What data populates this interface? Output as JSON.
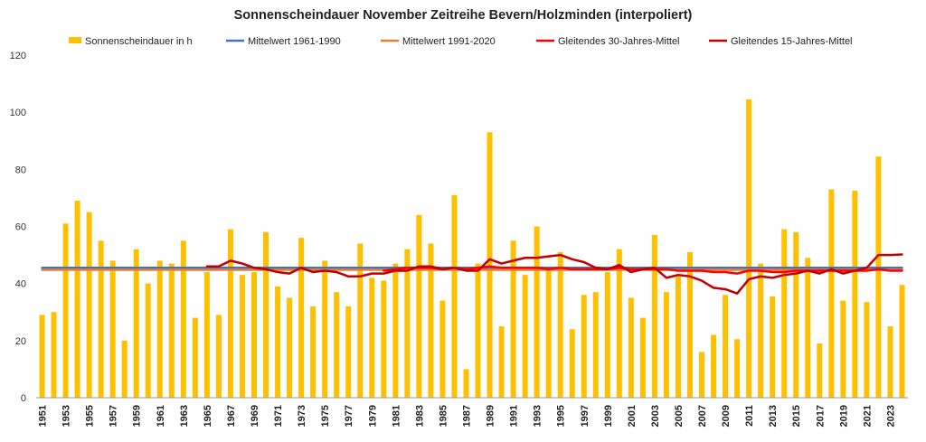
{
  "chart_data": {
    "type": "bar",
    "title": "Sonnenscheindauer November Zeitreihe Bevern/Holzminden (interpoliert)",
    "xlabel": "",
    "ylabel": "",
    "ylim": [
      0,
      120
    ],
    "yticks": [
      0,
      20,
      40,
      60,
      80,
      100,
      120
    ],
    "grid": false,
    "legend_position": "top",
    "x": [
      1951,
      1952,
      1953,
      1954,
      1955,
      1956,
      1957,
      1958,
      1959,
      1960,
      1961,
      1962,
      1963,
      1964,
      1965,
      1966,
      1967,
      1968,
      1969,
      1970,
      1971,
      1972,
      1973,
      1974,
      1975,
      1976,
      1977,
      1978,
      1979,
      1980,
      1981,
      1982,
      1983,
      1984,
      1985,
      1986,
      1987,
      1988,
      1989,
      1990,
      1991,
      1992,
      1993,
      1994,
      1995,
      1996,
      1997,
      1998,
      1999,
      2000,
      2001,
      2002,
      2003,
      2004,
      2005,
      2006,
      2007,
      2008,
      2009,
      2010,
      2011,
      2012,
      2013,
      2014,
      2015,
      2016,
      2017,
      2018,
      2019,
      2020,
      2021,
      2022,
      2023,
      2024
    ],
    "xtick_labels": [
      "1951",
      "1953",
      "1955",
      "1957",
      "1959",
      "1961",
      "1963",
      "1965",
      "1967",
      "1969",
      "1971",
      "1973",
      "1975",
      "1977",
      "1979",
      "1981",
      "1983",
      "1985",
      "1987",
      "1989",
      "1991",
      "1993",
      "1995",
      "1997",
      "1999",
      "2001",
      "2003",
      "2005",
      "2007",
      "2009",
      "2011",
      "2013",
      "2015",
      "2017",
      "2019",
      "2021",
      "2023"
    ],
    "series": [
      {
        "name": "Sonnenscheindauer in h",
        "kind": "bar",
        "color": "#FFC000",
        "values": [
          29,
          30,
          61,
          69,
          65,
          55,
          48,
          20,
          52,
          40,
          48,
          47,
          55,
          28,
          44,
          29,
          59,
          43,
          44,
          58,
          39,
          35,
          56,
          32,
          48,
          37,
          32,
          54,
          42,
          41,
          47,
          52,
          64,
          54,
          34,
          71,
          10,
          47,
          93,
          25,
          55,
          43,
          60,
          45,
          51,
          24,
          36,
          37,
          44,
          52,
          35,
          28,
          57,
          37,
          43,
          51,
          16,
          22,
          36,
          20.5,
          104.5,
          47,
          35.5,
          59,
          58,
          49,
          19,
          73,
          34,
          72.5,
          33.5,
          84.5,
          25,
          39.5
        ]
      },
      {
        "name": "Mittelwert 1961-1990",
        "kind": "line",
        "color": "#4472C4",
        "values": [
          45.5,
          45.5,
          45.5,
          45.5,
          45.5,
          45.5,
          45.5,
          45.5,
          45.5,
          45.5,
          45.5,
          45.5,
          45.5,
          45.5,
          45.5,
          45.5,
          45.5,
          45.5,
          45.5,
          45.5,
          45.5,
          45.5,
          45.5,
          45.5,
          45.5,
          45.5,
          45.5,
          45.5,
          45.5,
          45.5,
          45.5,
          45.5,
          45.5,
          45.5,
          45.5,
          45.5,
          45.5,
          45.5,
          45.5,
          45.5,
          45.5,
          45.5,
          45.5,
          45.5,
          45.5,
          45.5,
          45.5,
          45.5,
          45.5,
          45.5,
          45.5,
          45.5,
          45.5,
          45.5,
          45.5,
          45.5,
          45.5,
          45.5,
          45.5,
          45.5,
          45.5,
          45.5,
          45.5,
          45.5,
          45.5,
          45.5,
          45.5,
          45.5,
          45.5,
          45.5,
          45.5,
          45.5,
          45.5,
          45.5
        ]
      },
      {
        "name": "Mittelwert 1991-2020",
        "kind": "line",
        "color": "#ED7D31",
        "values": [
          44.8,
          44.8,
          44.8,
          44.8,
          44.8,
          44.8,
          44.8,
          44.8,
          44.8,
          44.8,
          44.8,
          44.8,
          44.8,
          44.8,
          44.8,
          44.8,
          44.8,
          44.8,
          44.8,
          44.8,
          44.8,
          44.8,
          44.8,
          44.8,
          44.8,
          44.8,
          44.8,
          44.8,
          44.8,
          44.8,
          44.8,
          44.8,
          44.8,
          44.8,
          44.8,
          44.8,
          44.8,
          44.8,
          44.8,
          44.8,
          44.8,
          44.8,
          44.8,
          44.8,
          44.8,
          44.8,
          44.8,
          44.8,
          44.8,
          44.8,
          44.8,
          44.8,
          44.8,
          44.8,
          44.8,
          44.8,
          44.8,
          44.8,
          44.8,
          44.8,
          44.8,
          44.8,
          44.8,
          44.8,
          44.8,
          44.8,
          44.8,
          44.8,
          44.8,
          44.8,
          44.8,
          44.8,
          44.8,
          44.8
        ]
      },
      {
        "name": "Gleitendes 30-Jahres-Mittel",
        "kind": "line",
        "color": "#FF0000",
        "values": [
          null,
          null,
          null,
          null,
          null,
          null,
          null,
          null,
          null,
          null,
          null,
          null,
          null,
          null,
          null,
          null,
          null,
          null,
          null,
          null,
          null,
          null,
          null,
          null,
          null,
          null,
          null,
          null,
          null,
          44.5,
          45,
          45.5,
          45.5,
          45.5,
          45,
          45.5,
          45,
          45.5,
          46,
          45.5,
          45.5,
          45.5,
          45.5,
          45,
          45.5,
          45,
          45,
          45,
          45,
          45.5,
          45,
          45,
          45,
          45,
          44.5,
          44.5,
          44.5,
          44,
          44,
          43.5,
          44.5,
          44.5,
          44,
          44,
          44.5,
          44.5,
          44.5,
          44.5,
          44.5,
          44.5,
          44.5,
          45,
          44.5,
          44.5
        ]
      },
      {
        "name": "Gleitendes 15-Jahres-Mittel",
        "kind": "line",
        "color": "#C00000",
        "values": [
          null,
          null,
          null,
          null,
          null,
          null,
          null,
          null,
          null,
          null,
          null,
          null,
          null,
          null,
          46,
          46,
          48,
          47,
          45.5,
          45,
          44,
          43.5,
          45.5,
          44,
          44.5,
          44,
          42.5,
          42.5,
          43.5,
          43.5,
          44.5,
          44.5,
          46,
          46,
          45,
          45.5,
          44.5,
          44.5,
          48.5,
          47,
          48,
          49,
          49,
          49.5,
          50,
          48.5,
          47.5,
          45.5,
          45,
          46.5,
          44,
          45,
          45.5,
          42,
          43,
          42.5,
          41,
          38.5,
          38,
          36.5,
          41.5,
          42.5,
          42,
          43,
          43.5,
          44.5,
          43.5,
          45,
          43.5,
          44.5,
          45.5,
          50,
          50,
          50.2
        ]
      }
    ]
  }
}
